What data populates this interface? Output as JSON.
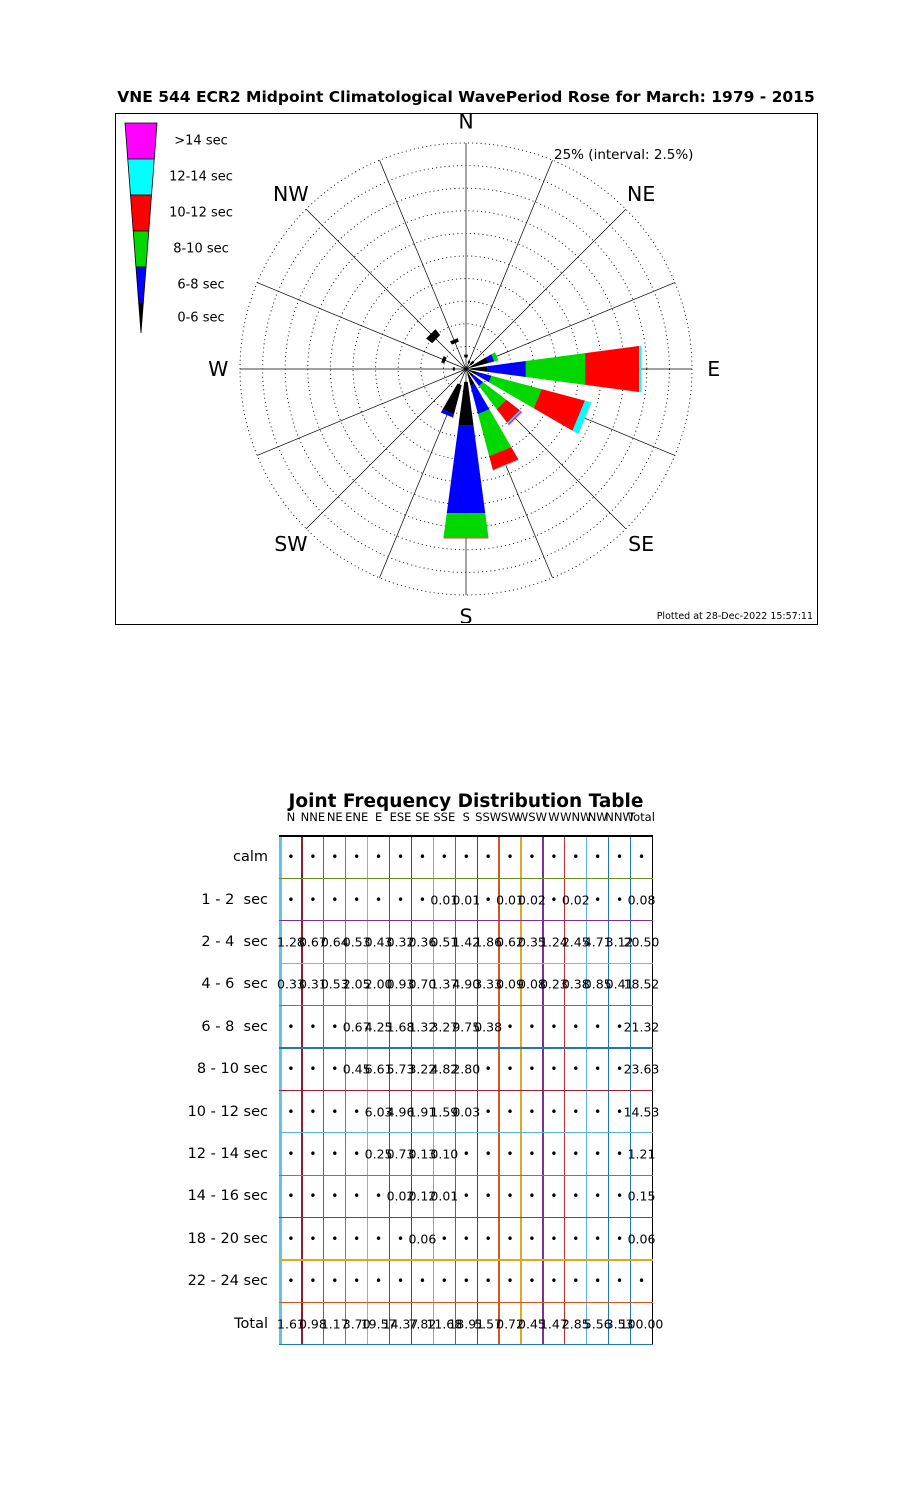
{
  "title": "VNE 544 ECR2 Midpoint Climatological WavePeriod Rose for March: 1979 - 2015",
  "rose": {
    "annotation": "25% (interval: 2.5%)",
    "footer": "Plotted at 28-Dec-2022 15:57:11",
    "compass_labels": [
      "N",
      "NE",
      "E",
      "SE",
      "S",
      "SW",
      "W",
      "NW"
    ],
    "legend": [
      {
        "label": ">14 sec",
        "color": "#ff00ff"
      },
      {
        "label": "12-14 sec",
        "color": "#00ffff"
      },
      {
        "label": "10-12 sec",
        "color": "#ff0000"
      },
      {
        "label": "8-10 sec",
        "color": "#00d800"
      },
      {
        "label": "6-8 sec",
        "color": "#0000ff"
      },
      {
        "label": "0-6 sec",
        "color": "#000000"
      }
    ]
  },
  "table": {
    "title": "Joint Frequency Distribution Table",
    "grid_colors": {
      "vertical": [
        "#56c8f0",
        "#8b1e2d",
        "#1f77b4",
        "#d9541e",
        "#e0a91c",
        "#7b3294",
        "#a02030",
        "#5ab4e9",
        "#1f77b4",
        "#a02030",
        "#d9541e",
        "#e0a91c",
        "#7b3294",
        "#c03030",
        "#5ab4e9",
        "#1f77b4",
        "#1f77b4",
        "#000000"
      ],
      "horizontal": [
        "#000000",
        "#6b8e23",
        "#7b3294",
        "#e0a91c",
        "#d9541e",
        "#1f77b4",
        "#a02030",
        "#5ab4e9",
        "#6b8e23",
        "#7b3294",
        "#e0a91c",
        "#d9541e",
        "#1f77b4"
      ]
    }
  },
  "chart_data": {
    "type": "rose",
    "title": "VNE 544 ECR2 Midpoint Climatological WavePeriod Rose for March: 1979 - 2015",
    "directions": [
      "N",
      "NNE",
      "NE",
      "ENE",
      "E",
      "ESE",
      "SE",
      "SSE",
      "S",
      "SSW",
      "SW",
      "WSW",
      "W",
      "WNW",
      "NW",
      "NNW"
    ],
    "columns": [
      "N",
      "NNE",
      "NE",
      "ENE",
      "E",
      "ESE",
      "SE",
      "SSE",
      "S",
      "SSW",
      "SW",
      "WSW",
      "W",
      "WNW",
      "NW",
      "NNW",
      "Total"
    ],
    "rose_scale": {
      "max_pct": 25,
      "interval_pct": 2.5
    },
    "hidden_rows": [
      "calm",
      "1 - 2  sec",
      "2 - 4  sec"
    ],
    "rose_bins": [
      {
        "legend": "0-6 sec",
        "color": "#000000",
        "rows": [
          "4 - 6  sec"
        ]
      },
      {
        "legend": "6-8 sec",
        "color": "#0000ff",
        "rows": [
          "6 - 8  sec"
        ]
      },
      {
        "legend": "8-10 sec",
        "color": "#00d800",
        "rows": [
          "8 - 10 sec"
        ]
      },
      {
        "legend": "10-12 sec",
        "color": "#ff0000",
        "rows": [
          "10 - 12 sec"
        ]
      },
      {
        "legend": "12-14 sec",
        "color": "#00ffff",
        "rows": [
          "12 - 14 sec"
        ]
      },
      {
        "legend": ">14 sec",
        "color": "#ff00ff",
        "rows": [
          "14 - 16 sec",
          "18 - 20 sec",
          "22 - 24 sec"
        ]
      }
    ],
    "rows": [
      {
        "label": "calm",
        "values": [
          "•",
          "•",
          "•",
          "•",
          "•",
          "•",
          "•",
          "•",
          "•",
          "•",
          "•",
          "•",
          "•",
          "•",
          "•",
          "•",
          "•"
        ]
      },
      {
        "label": "1 - 2  sec",
        "values": [
          "•",
          "•",
          "•",
          "•",
          "•",
          "•",
          "•",
          "0.01",
          "0.01",
          "•",
          "0.01",
          "0.02",
          "•",
          "0.02",
          "•",
          "•",
          "0.08"
        ]
      },
      {
        "label": "2 - 4  sec",
        "values": [
          "1.28",
          "0.67",
          "0.64",
          "0.53",
          "0.43",
          "0.32",
          "0.36",
          "0.51",
          "1.42",
          "1.86",
          "0.62",
          "0.35",
          "1.24",
          "2.45",
          "4.71",
          "3.12",
          "20.50"
        ]
      },
      {
        "label": "4 - 6  sec",
        "values": [
          "0.33",
          "0.31",
          "0.53",
          "2.05",
          "2.00",
          "0.93",
          "0.70",
          "1.37",
          "4.90",
          "3.33",
          "0.09",
          "0.08",
          "0.23",
          "0.38",
          "0.85",
          "0.41",
          "18.52"
        ]
      },
      {
        "label": "6 - 8  sec",
        "values": [
          "•",
          "•",
          "•",
          "0.67",
          "4.25",
          "1.68",
          "1.32",
          "3.27",
          "9.75",
          "0.38",
          "•",
          "•",
          "•",
          "•",
          "•",
          "•",
          "21.32"
        ]
      },
      {
        "label": "8 - 10 sec",
        "values": [
          "•",
          "•",
          "•",
          "0.45",
          "6.61",
          "5.73",
          "3.22",
          "4.82",
          "2.80",
          "•",
          "•",
          "•",
          "•",
          "•",
          "•",
          "•",
          "23.63"
        ]
      },
      {
        "label": "10 - 12 sec",
        "values": [
          "•",
          "•",
          "•",
          "•",
          "6.03",
          "4.96",
          "1.91",
          "1.59",
          "0.03",
          "•",
          "•",
          "•",
          "•",
          "•",
          "•",
          "•",
          "14.53"
        ]
      },
      {
        "label": "12 - 14 sec",
        "values": [
          "•",
          "•",
          "•",
          "•",
          "0.25",
          "0.73",
          "0.13",
          "0.10",
          "•",
          "•",
          "•",
          "•",
          "•",
          "•",
          "•",
          "•",
          "1.21"
        ]
      },
      {
        "label": "14 - 16 sec",
        "values": [
          "•",
          "•",
          "•",
          "•",
          "•",
          "0.02",
          "0.12",
          "0.01",
          "•",
          "•",
          "•",
          "•",
          "•",
          "•",
          "•",
          "•",
          "0.15"
        ]
      },
      {
        "label": "18 - 20 sec",
        "values": [
          "•",
          "•",
          "•",
          "•",
          "•",
          "•",
          "0.06",
          "•",
          "•",
          "•",
          "•",
          "•",
          "•",
          "•",
          "•",
          "•",
          "0.06"
        ]
      },
      {
        "label": "22 - 24 sec",
        "values": [
          "•",
          "•",
          "•",
          "•",
          "•",
          "•",
          "•",
          "•",
          "•",
          "•",
          "•",
          "•",
          "•",
          "•",
          "•",
          "•",
          "•"
        ]
      },
      {
        "label": "Total",
        "values": [
          "1.61",
          "0.98",
          "1.17",
          "3.70",
          "19.57",
          "14.37",
          "7.82",
          "11.68",
          "18.91",
          "5.57",
          "0.72",
          "0.45",
          "1.47",
          "2.85",
          "5.56",
          "3.53",
          "100.00"
        ]
      }
    ]
  }
}
